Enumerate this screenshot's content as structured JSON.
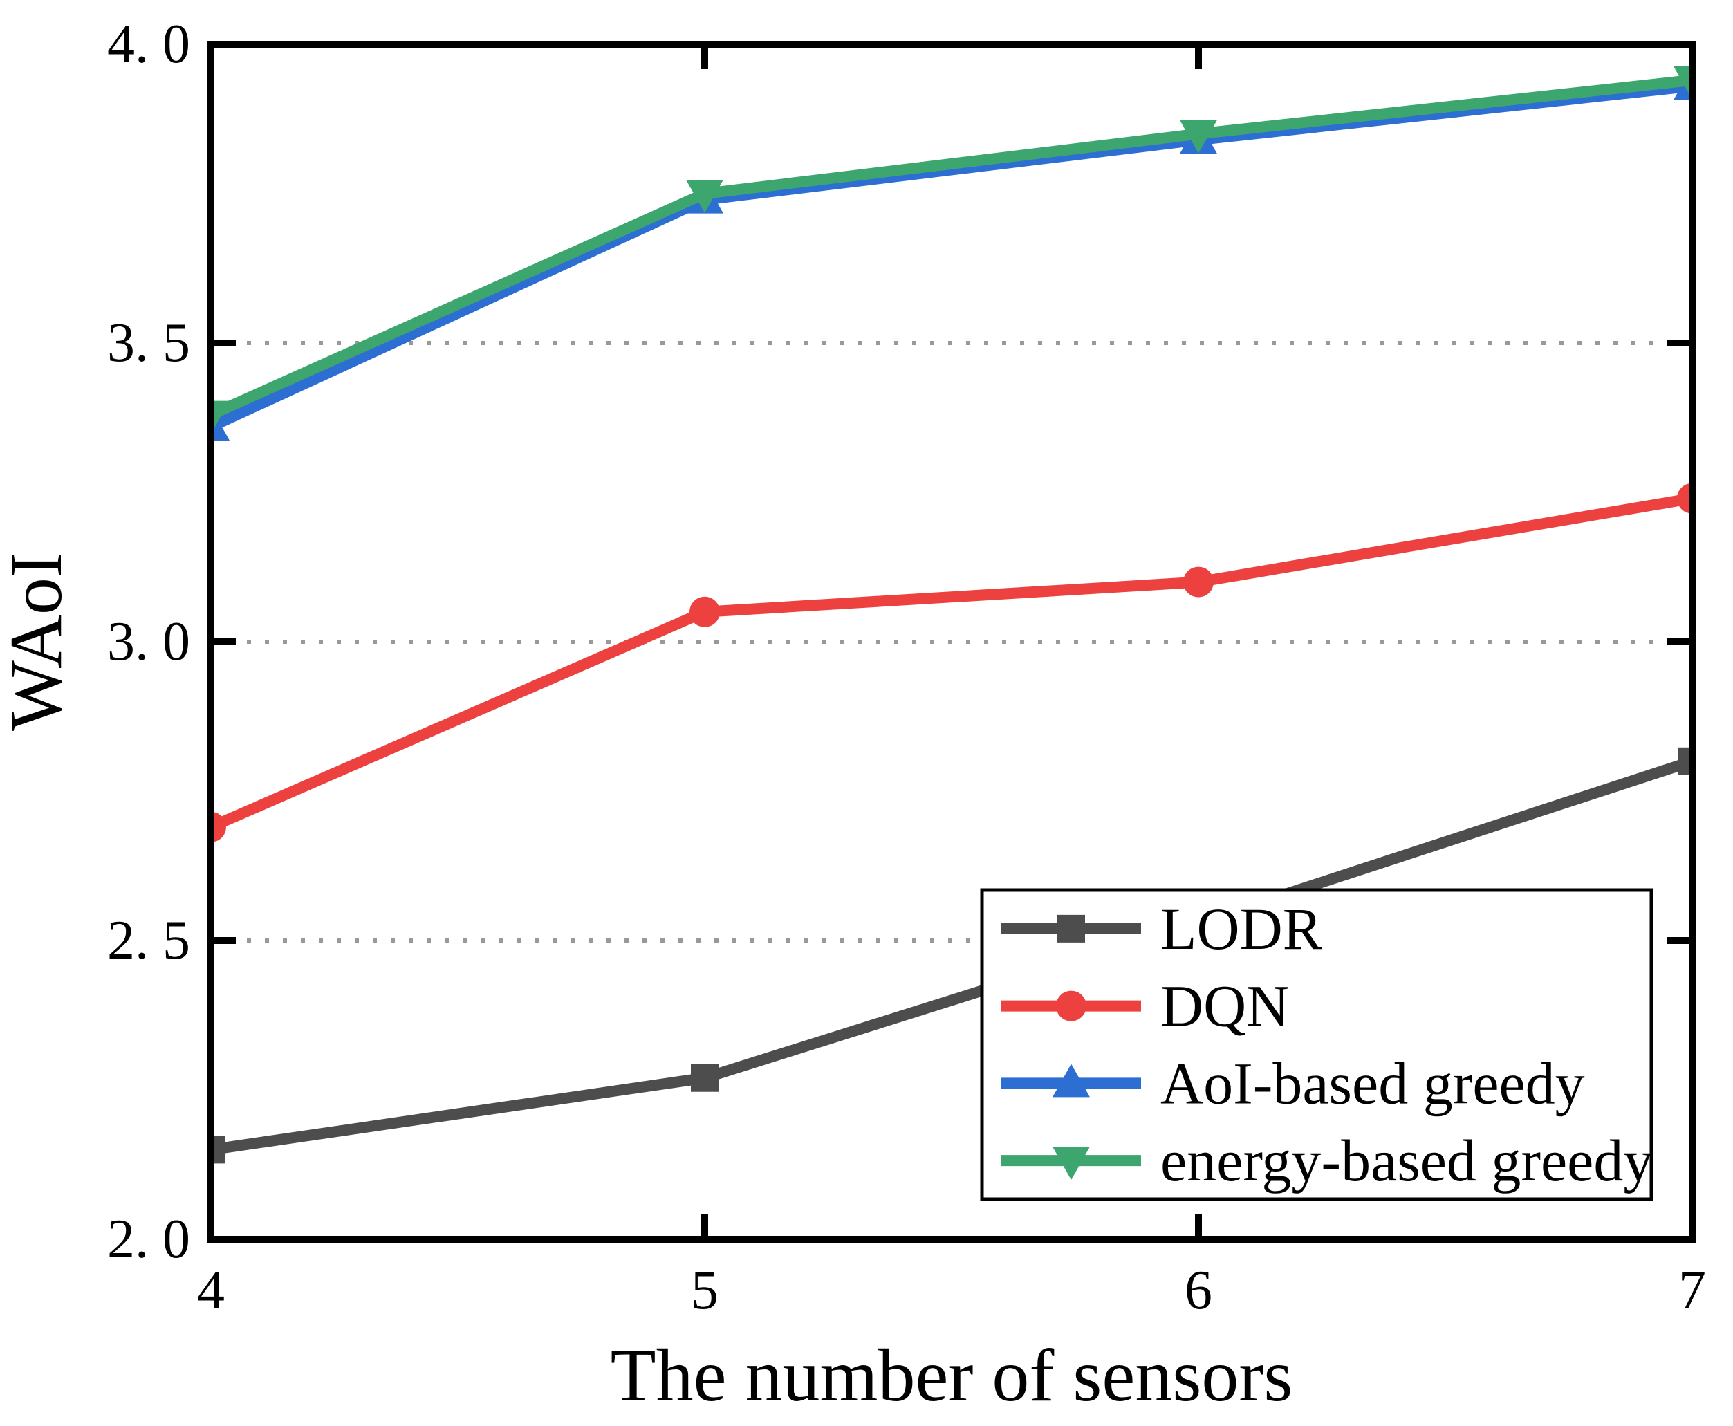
{
  "figure": {
    "background": "#ffffff",
    "frame_color": "#000000"
  },
  "chart_data": {
    "type": "line",
    "title": "",
    "xlabel": "The number of sensors",
    "ylabel": "WAoI",
    "x": [
      4,
      5,
      6,
      7
    ],
    "xlim": [
      4,
      7
    ],
    "ylim": [
      2.0,
      4.0
    ],
    "xticks": [
      4,
      5,
      6,
      7
    ],
    "xtick_labels": [
      "4",
      "5",
      "6",
      "7"
    ],
    "yticks": [
      2.0,
      2.5,
      3.0,
      3.5,
      4.0
    ],
    "ytick_labels": [
      "2. 0",
      "2. 5",
      "3. 0",
      "3. 5",
      "4. 0"
    ],
    "grid": {
      "horizontal_at": [
        2.5,
        3.0,
        3.5
      ],
      "style": "dotted",
      "color": "#999999"
    },
    "legend": {
      "position": "lower-right",
      "entries": [
        "LODR",
        "DQN",
        "AoI-based greedy",
        "energy-based greedy"
      ]
    },
    "series": [
      {
        "name": "LODR",
        "color": "#4d4d4d",
        "marker": "square",
        "values": [
          2.15,
          2.27,
          2.53,
          2.8
        ]
      },
      {
        "name": "DQN",
        "color": "#ed4140",
        "marker": "circle",
        "values": [
          2.69,
          3.05,
          3.1,
          3.24
        ]
      },
      {
        "name": "AoI-based greedy",
        "color": "#2d6ed2",
        "marker": "triangle-up",
        "values": [
          3.36,
          3.74,
          3.84,
          3.93
        ]
      },
      {
        "name": "energy-based greedy",
        "color": "#3ca66e",
        "marker": "triangle-down",
        "values": [
          3.38,
          3.75,
          3.85,
          3.94
        ]
      }
    ]
  }
}
